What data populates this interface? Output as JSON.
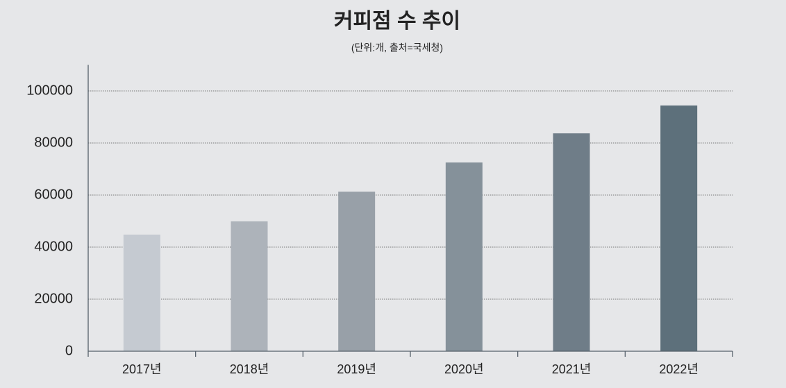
{
  "chart_data": {
    "type": "bar",
    "title": "커피점 수 추이",
    "subtitle": "(단위:개, 출처=국세청)",
    "categories": [
      "2017년",
      "2018년",
      "2019년",
      "2020년",
      "2021년",
      "2022년"
    ],
    "values": [
      44800,
      49900,
      61300,
      72500,
      83700,
      94400
    ],
    "colors": [
      "#c5cad1",
      "#adb3ba",
      "#98a0a8",
      "#85919a",
      "#6f7d88",
      "#5d707b"
    ],
    "ylim": [
      0,
      110000
    ],
    "yticks": [
      0,
      20000,
      40000,
      60000,
      80000,
      100000
    ],
    "grid": true
  }
}
